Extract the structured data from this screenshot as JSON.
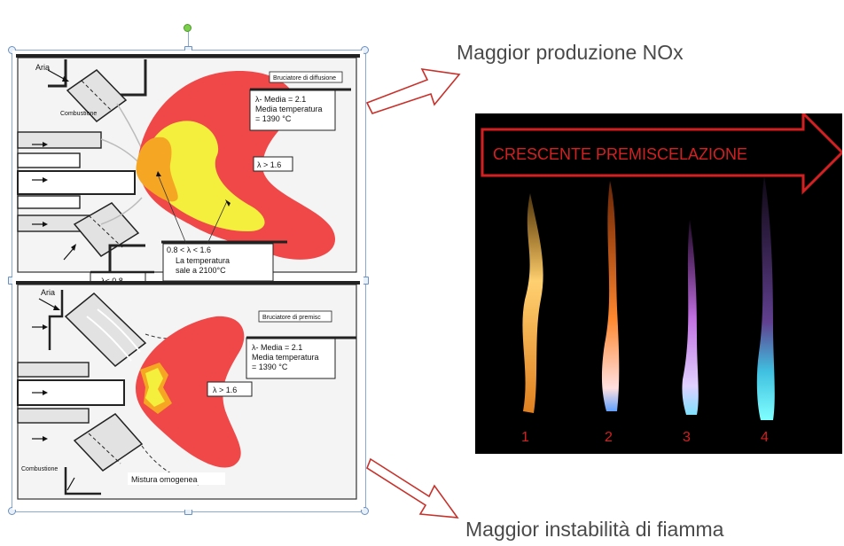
{
  "headings": {
    "top": "Maggior produzione NOx",
    "bottom": "Maggior instabilità di fiamma"
  },
  "diffusion_burner": {
    "title": "Bruciatore di diffusione",
    "air_label": "Aria",
    "combustion_label": "Combustione",
    "box_mean_1": "λ- Media = 2.1",
    "box_mean_2": "Media temperatura",
    "box_mean_3": "= 1390 °C",
    "lambda_outer": "λ > 1.6",
    "box_range_1": "0.8 < λ < 1.6",
    "box_range_2": "La temperatura",
    "box_range_3": "sale a  2100°C",
    "lambda_low": "λ< 0.8"
  },
  "premix_burner": {
    "title": "Bruciatore di premisc",
    "air_label": "Aria",
    "combustion_label": "Combustione",
    "box_mean_1": "λ- Media = 2.1",
    "box_mean_2": "Media temperatura",
    "box_mean_3": "= 1390 °C",
    "lambda_outer": "λ > 1.6",
    "mixture_label": "Mistura omogenea"
  },
  "flames_photo": {
    "banner": "CRESCENTE PREMISCELAZIONE",
    "numbers": [
      "1",
      "2",
      "3",
      "4"
    ]
  },
  "colors": {
    "flame_red": "#f04848",
    "flame_yellow": "#f4ee3c",
    "flame_orange": "#f5a623",
    "accent_red": "#d42020",
    "arrow_outline": "#c8302a"
  }
}
